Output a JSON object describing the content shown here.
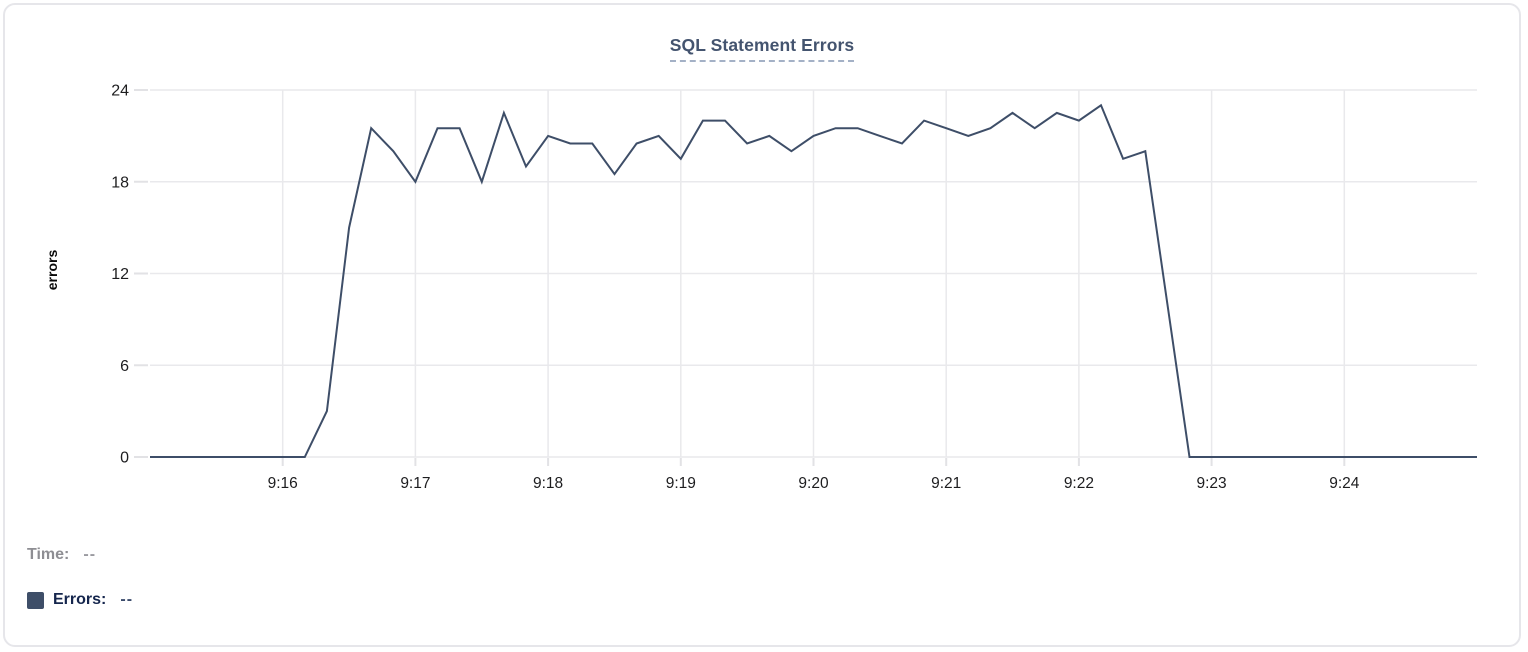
{
  "chart_data": {
    "type": "line",
    "title": "SQL Statement Errors",
    "xlabel": "",
    "ylabel": "errors",
    "x_ticks": [
      "9:16",
      "9:17",
      "9:18",
      "9:19",
      "9:20",
      "9:21",
      "9:22",
      "9:23",
      "9:24"
    ],
    "y_ticks": [
      0,
      6,
      12,
      18,
      24
    ],
    "ylim": [
      0,
      24
    ],
    "x_range": [
      "9:15:00",
      "9:25:00"
    ],
    "interval_seconds": 10,
    "grid": true,
    "legend_position": "bottom-left",
    "series": [
      {
        "name": "Errors",
        "color": "#3e4e68",
        "times": [
          "9:15:00",
          "9:15:10",
          "9:15:20",
          "9:15:30",
          "9:15:40",
          "9:15:50",
          "9:16:00",
          "9:16:10",
          "9:16:20",
          "9:16:30",
          "9:16:40",
          "9:16:50",
          "9:17:00",
          "9:17:10",
          "9:17:20",
          "9:17:30",
          "9:17:40",
          "9:17:50",
          "9:18:00",
          "9:18:10",
          "9:18:20",
          "9:18:30",
          "9:18:40",
          "9:18:50",
          "9:19:00",
          "9:19:10",
          "9:19:20",
          "9:19:30",
          "9:19:40",
          "9:19:50",
          "9:20:00",
          "9:20:10",
          "9:20:20",
          "9:20:30",
          "9:20:40",
          "9:20:50",
          "9:21:00",
          "9:21:10",
          "9:21:20",
          "9:21:30",
          "9:21:40",
          "9:21:50",
          "9:22:00",
          "9:22:10",
          "9:22:20",
          "9:22:30",
          "9:22:40",
          "9:22:50",
          "9:23:00",
          "9:23:10",
          "9:23:20",
          "9:23:30",
          "9:23:40",
          "9:23:50",
          "9:24:00",
          "9:24:10",
          "9:24:20",
          "9:24:30",
          "9:24:40",
          "9:24:50",
          "9:25:00"
        ],
        "values": [
          0,
          0,
          0,
          0,
          0,
          0,
          0,
          0,
          3,
          15,
          21.5,
          20,
          18,
          21.5,
          21.5,
          18,
          22.5,
          19,
          21,
          20.5,
          20.5,
          18.5,
          20.5,
          21,
          19.5,
          22,
          22,
          20.5,
          21,
          20,
          21,
          21.5,
          21.5,
          21,
          20.5,
          22,
          21.5,
          21,
          21.5,
          22.5,
          21.5,
          22.5,
          22,
          23,
          19.5,
          20,
          10,
          0,
          0,
          0,
          0,
          0,
          0,
          0,
          0,
          0,
          0,
          0,
          0,
          0,
          0
        ]
      }
    ]
  },
  "readout": {
    "time_label": "Time:",
    "time_value": "--",
    "errors_label": "Errors:",
    "errors_value": "--"
  },
  "colors": {
    "line": "#3e4e68",
    "swatch": "#3e4e68",
    "grid": "#e9e9ec",
    "tick_mark": "#e2e2e5",
    "tick_text": "#1d1d1f",
    "title_text": "#44546f",
    "card_border": "#e6e6ea"
  }
}
